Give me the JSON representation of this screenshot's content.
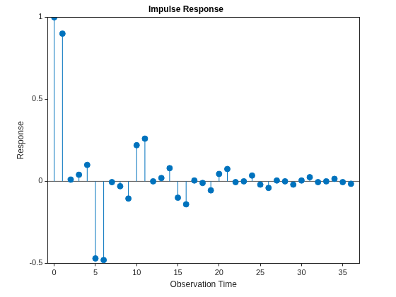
{
  "chart_data": {
    "type": "stem",
    "title": "Impulse Response",
    "x_label": "Observation Time",
    "y_label": "Response",
    "x": [
      0,
      1,
      2,
      3,
      4,
      5,
      6,
      7,
      8,
      9,
      10,
      11,
      12,
      13,
      14,
      15,
      16,
      17,
      18,
      19,
      20,
      21,
      22,
      23,
      24,
      25,
      26,
      27,
      28,
      29,
      30,
      31,
      32,
      33,
      34,
      35,
      36
    ],
    "values": [
      1,
      0.9,
      0.01,
      0.04,
      0.1,
      -0.47,
      -0.48,
      -0.005,
      -0.03,
      -0.105,
      0.22,
      0.26,
      0.0,
      0.02,
      0.08,
      -0.1,
      -0.14,
      0.005,
      -0.01,
      -0.055,
      0.045,
      0.075,
      -0.005,
      0.0,
      0.035,
      -0.02,
      -0.04,
      0.005,
      0.0,
      -0.02,
      0.005,
      0.025,
      -0.005,
      0.0,
      0.015,
      -0.005,
      -0.015
    ],
    "color": "#0072bd",
    "marker": "o",
    "xlim": [
      -0.8,
      37
    ],
    "xticks": [
      0,
      5,
      10,
      15,
      20,
      25,
      30,
      35
    ],
    "ylim": [
      -0.5,
      1
    ],
    "yticks": [
      -0.5,
      0,
      0.5,
      1
    ],
    "grid": false
  }
}
